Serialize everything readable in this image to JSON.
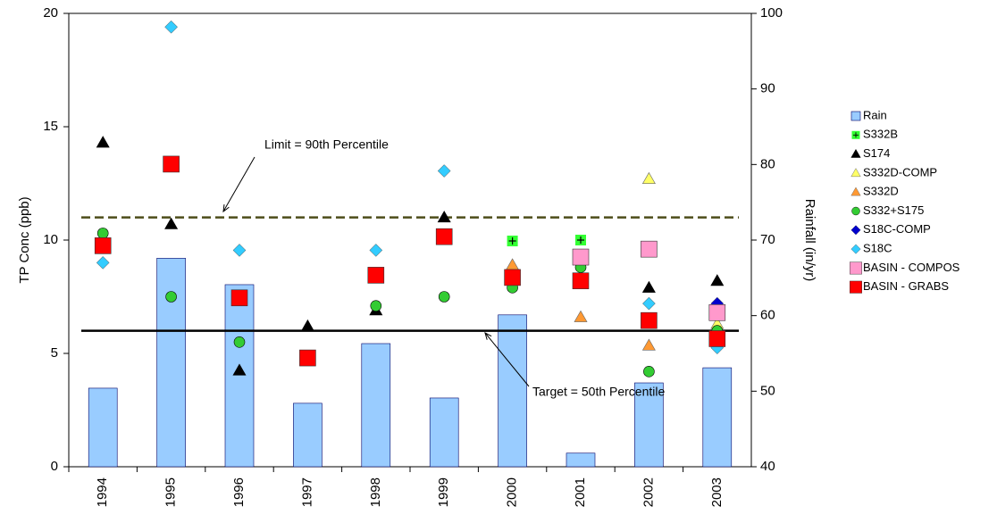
{
  "chart_data": {
    "type": "combo",
    "y_label": "TP Conc (ppb)",
    "y2_label": "Rainfall (in/yr)",
    "categories": [
      "1994",
      "1995",
      "1996",
      "1997",
      "1998",
      "1999",
      "2000",
      "2001",
      "2002",
      "2003"
    ],
    "ylim": [
      0,
      20
    ],
    "yticks": [
      0,
      5,
      10,
      15,
      20
    ],
    "y2lim": [
      40,
      100
    ],
    "y2ticks": [
      40,
      50,
      60,
      70,
      80,
      90,
      100
    ],
    "reference_lines": [
      {
        "value": 11,
        "label": "Limit = 90th Percentile",
        "style": "dashed",
        "color": "#4d4d1a"
      },
      {
        "value": 6,
        "label": "Target = 50th Percentile",
        "style": "solid",
        "color": "#000000"
      }
    ],
    "series": [
      {
        "name": "Rain",
        "type": "bar",
        "axis": "y2",
        "color": "#99ccff",
        "values": [
          50.4,
          67.6,
          64.1,
          48.4,
          56.3,
          49.1,
          60.1,
          41.8,
          51.1,
          53.1
        ]
      },
      {
        "name": "S332B",
        "type": "scatter",
        "marker": "plus-square",
        "color": "#33ff33",
        "values": [
          null,
          null,
          null,
          null,
          null,
          null,
          9.96,
          10.0,
          null,
          null
        ]
      },
      {
        "name": "S174",
        "type": "scatter",
        "marker": "triangle",
        "color": "#000000",
        "values": [
          14.3,
          10.7,
          4.25,
          6.2,
          6.9,
          11.0,
          null,
          null,
          7.9,
          8.2
        ]
      },
      {
        "name": "S332D-COMP",
        "type": "scatter",
        "marker": "triangle",
        "color": "#ffff66",
        "values": [
          null,
          null,
          null,
          null,
          null,
          null,
          null,
          null,
          12.7,
          6.3
        ]
      },
      {
        "name": "S332D",
        "type": "scatter",
        "marker": "triangle",
        "color": "#ff9933",
        "values": [
          null,
          null,
          null,
          null,
          null,
          null,
          8.9,
          6.6,
          5.35,
          null
        ]
      },
      {
        "name": "S332+S175",
        "type": "scatter",
        "marker": "circle",
        "color": "#33cc33",
        "values": [
          10.3,
          7.5,
          5.5,
          null,
          7.1,
          7.5,
          7.9,
          8.8,
          4.2,
          6.0
        ]
      },
      {
        "name": "S18C-COMP",
        "type": "scatter",
        "marker": "diamond",
        "color": "#0000cc",
        "values": [
          null,
          null,
          null,
          null,
          null,
          null,
          null,
          null,
          null,
          7.2
        ]
      },
      {
        "name": "S18C",
        "type": "scatter",
        "marker": "diamond",
        "color": "#33ccff",
        "values": [
          9.0,
          19.4,
          9.55,
          null,
          9.55,
          13.05,
          null,
          null,
          7.2,
          5.25
        ]
      },
      {
        "name": "BASIN - COMPOS",
        "type": "scatter",
        "marker": "big-square",
        "color": "#ff99cc",
        "values": [
          null,
          null,
          null,
          null,
          null,
          null,
          null,
          9.25,
          9.6,
          6.8
        ]
      },
      {
        "name": "BASIN - GRABS",
        "type": "scatter",
        "marker": "big-square",
        "color": "#ff0000",
        "values": [
          9.75,
          13.35,
          7.45,
          4.8,
          8.45,
          10.15,
          8.35,
          8.2,
          6.45,
          5.65
        ]
      }
    ]
  }
}
